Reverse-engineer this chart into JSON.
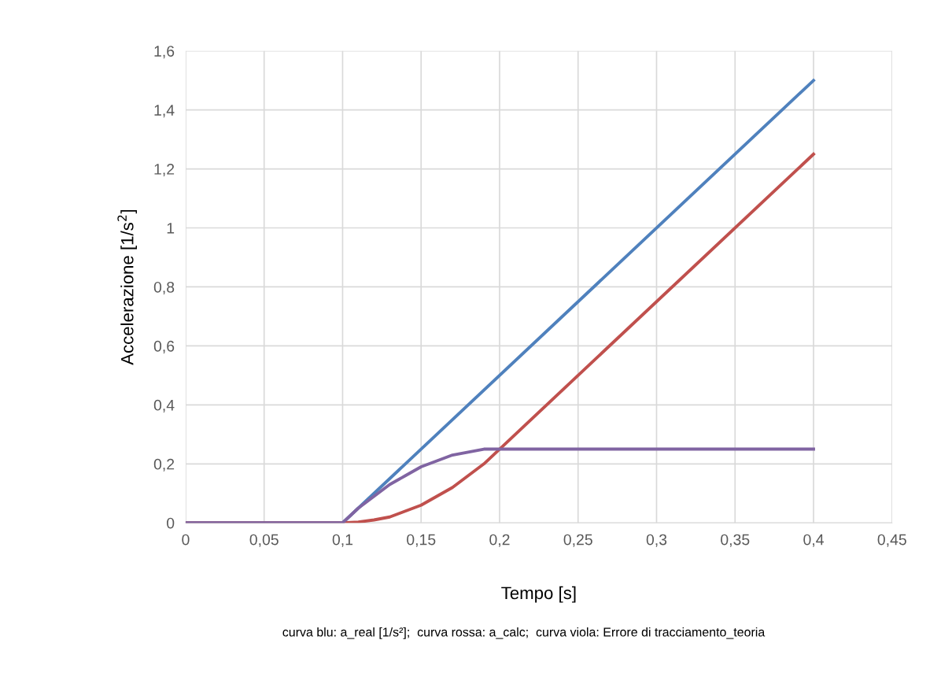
{
  "chart_data": {
    "type": "line",
    "xlabel": "Tempo [s]",
    "ylabel": "Accelerazione [1/s$^{2}$]",
    "xlim": [
      0,
      0.45
    ],
    "ylim": [
      0,
      1.6
    ],
    "xticks": [
      0,
      {
        "value": 0.05,
        "label": "0,05"
      },
      {
        "value": 0.1,
        "label": "0,1"
      },
      {
        "value": 0.15,
        "label": "0,15"
      },
      {
        "value": 0.2,
        "label": "0,2"
      },
      {
        "value": 0.25,
        "label": "0,25"
      },
      {
        "value": 0.3,
        "label": "0,3"
      },
      {
        "value": 0.35,
        "label": "0,35"
      },
      {
        "value": 0.4,
        "label": "0,4"
      },
      {
        "value": 0.45,
        "label": "0,45"
      }
    ],
    "yticks": [
      0,
      {
        "value": 0.2,
        "label": "0,2"
      },
      {
        "value": 0.4,
        "label": "0,4"
      },
      {
        "value": 0.6,
        "label": "0,6"
      },
      {
        "value": 0.8,
        "label": "0,8"
      },
      1,
      {
        "value": 1.2,
        "label": "1,2"
      },
      {
        "value": 1.4,
        "label": "1,4"
      },
      {
        "value": 1.6,
        "label": "1,6"
      }
    ],
    "grid": true,
    "legend": false,
    "marker": "none",
    "line_style": "solid",
    "series": [
      {
        "color": "#4f81bd",
        "x": [
          0,
          0.1,
          0.4
        ],
        "values": [
          0,
          0,
          1.5
        ]
      },
      {
        "color": "#c0504d",
        "x": [
          0,
          0.1,
          0.11,
          0.12,
          0.13,
          0.14,
          0.15,
          0.16,
          0.17,
          0.18,
          0.19,
          0.2,
          0.4
        ],
        "values": [
          0,
          0,
          0.003,
          0.01,
          0.02,
          0.04,
          0.06,
          0.09,
          0.12,
          0.16,
          0.2,
          0.25,
          1.25
        ]
      },
      {
        "color": "#8064a2",
        "x": [
          0,
          0.1,
          0.11,
          0.12,
          0.13,
          0.14,
          0.15,
          0.16,
          0.17,
          0.18,
          0.19,
          0.2,
          0.4
        ],
        "values": [
          0,
          0,
          0.05,
          0.09,
          0.13,
          0.16,
          0.19,
          0.21,
          0.23,
          0.24,
          0.25,
          0.25,
          0.25
        ]
      }
    ],
    "annotations": [
      "curva blu: a_real [1/s²];  curva rossa: a_calc;  curva viola: Errore di tracciamento_teoria"
    ]
  }
}
